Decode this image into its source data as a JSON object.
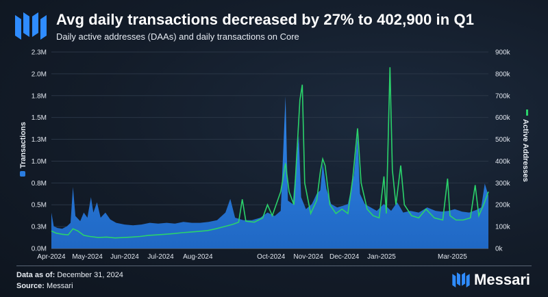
{
  "header": {
    "title": "Avg daily transactions decreased by 27% to 402,900 in Q1",
    "subtitle": "Daily active addresses (DAAs) and daily transactions on Core"
  },
  "footer": {
    "data_as_of_label": "Data as of:",
    "data_as_of_value": "December 31, 2024",
    "source_label": "Source:",
    "source_value": "Messari",
    "brand": "Messari"
  },
  "colors": {
    "transactions": "#2a7de1",
    "active_addresses": "#2bd36b",
    "brand_blue": "#2f8cff"
  },
  "icons": {
    "logo": "messari-logo-icon"
  },
  "chart_data": {
    "type": "area",
    "left_axis": {
      "label": "Transactions",
      "ticks": [
        "0.0M",
        "0.3M",
        "0.5M",
        "0.8M",
        "1.0M",
        "1.3M",
        "1.5M",
        "1.8M",
        "2.0M",
        "2.3M"
      ],
      "tick_values": [
        0,
        255556,
        511111,
        766667,
        1022222,
        1277778,
        1533333,
        1788889,
        2044444,
        2300000
      ],
      "range": [
        0,
        2300000
      ]
    },
    "right_axis": {
      "label": "Active Addresses",
      "ticks": [
        "0k",
        "100k",
        "200k",
        "300k",
        "400k",
        "500k",
        "600k",
        "700k",
        "800k",
        "900k"
      ],
      "tick_values": [
        0,
        100000,
        200000,
        300000,
        400000,
        500000,
        600000,
        700000,
        800000,
        900000
      ],
      "range": [
        0,
        900000
      ]
    },
    "x_axis": {
      "ticks": [
        "Apr-2024",
        "May-2024",
        "Jun-2024",
        "Jul-2024",
        "Aug-2024",
        "Oct-2024",
        "Nov-2024",
        "Dec-2024",
        "Jan-2025",
        "Mar-2025"
      ],
      "tick_dates": [
        "2024-04-01",
        "2024-05-01",
        "2024-06-01",
        "2024-07-01",
        "2024-08-01",
        "2024-10-01",
        "2024-11-01",
        "2024-12-01",
        "2025-01-01",
        "2025-03-01"
      ],
      "range": [
        "2024-04-01",
        "2025-03-31"
      ]
    },
    "series": [
      {
        "name": "Transactions",
        "axis": "left",
        "style": "area",
        "points": [
          [
            "2024-04-01",
            420000
          ],
          [
            "2024-04-03",
            260000
          ],
          [
            "2024-04-06",
            240000
          ],
          [
            "2024-04-10",
            230000
          ],
          [
            "2024-04-14",
            260000
          ],
          [
            "2024-04-17",
            300000
          ],
          [
            "2024-04-19",
            720000
          ],
          [
            "2024-04-21",
            380000
          ],
          [
            "2024-04-25",
            320000
          ],
          [
            "2024-04-28",
            420000
          ],
          [
            "2024-05-01",
            360000
          ],
          [
            "2024-05-04",
            600000
          ],
          [
            "2024-05-06",
            420000
          ],
          [
            "2024-05-09",
            540000
          ],
          [
            "2024-05-12",
            360000
          ],
          [
            "2024-05-16",
            420000
          ],
          [
            "2024-05-20",
            340000
          ],
          [
            "2024-05-25",
            300000
          ],
          [
            "2024-06-01",
            280000
          ],
          [
            "2024-06-08",
            270000
          ],
          [
            "2024-06-15",
            280000
          ],
          [
            "2024-06-22",
            300000
          ],
          [
            "2024-06-29",
            290000
          ],
          [
            "2024-07-06",
            300000
          ],
          [
            "2024-07-13",
            290000
          ],
          [
            "2024-07-20",
            310000
          ],
          [
            "2024-07-27",
            300000
          ],
          [
            "2024-08-03",
            300000
          ],
          [
            "2024-08-10",
            310000
          ],
          [
            "2024-08-17",
            330000
          ],
          [
            "2024-08-24",
            420000
          ],
          [
            "2024-08-28",
            580000
          ],
          [
            "2024-09-01",
            360000
          ],
          [
            "2024-09-08",
            330000
          ],
          [
            "2024-09-15",
            330000
          ],
          [
            "2024-09-22",
            360000
          ],
          [
            "2024-09-28",
            420000
          ],
          [
            "2024-10-04",
            380000
          ],
          [
            "2024-10-09",
            440000
          ],
          [
            "2024-10-13",
            1780000
          ],
          [
            "2024-10-15",
            560000
          ],
          [
            "2024-10-19",
            520000
          ],
          [
            "2024-10-24",
            1320000
          ],
          [
            "2024-10-26",
            600000
          ],
          [
            "2024-10-30",
            460000
          ],
          [
            "2024-11-04",
            520000
          ],
          [
            "2024-11-08",
            640000
          ],
          [
            "2024-11-11",
            680000
          ],
          [
            "2024-11-13",
            1000000
          ],
          [
            "2024-11-16",
            700000
          ],
          [
            "2024-11-20",
            520000
          ],
          [
            "2024-11-25",
            480000
          ],
          [
            "2024-11-30",
            500000
          ],
          [
            "2024-12-04",
            520000
          ],
          [
            "2024-12-09",
            860000
          ],
          [
            "2024-12-12",
            1320000
          ],
          [
            "2024-12-14",
            640000
          ],
          [
            "2024-12-18",
            520000
          ],
          [
            "2024-12-23",
            480000
          ],
          [
            "2024-12-28",
            440000
          ],
          [
            "2025-01-03",
            520000
          ],
          [
            "2025-01-09",
            440000
          ],
          [
            "2025-01-14",
            540000
          ],
          [
            "2025-01-19",
            420000
          ],
          [
            "2025-01-25",
            440000
          ],
          [
            "2025-02-01",
            420000
          ],
          [
            "2025-02-08",
            480000
          ],
          [
            "2025-02-15",
            440000
          ],
          [
            "2025-02-20",
            430000
          ],
          [
            "2025-02-26",
            440000
          ],
          [
            "2025-03-03",
            460000
          ],
          [
            "2025-03-09",
            430000
          ],
          [
            "2025-03-15",
            420000
          ],
          [
            "2025-03-21",
            450000
          ],
          [
            "2025-03-25",
            480000
          ],
          [
            "2025-03-28",
            760000
          ],
          [
            "2025-03-31",
            620000
          ]
        ]
      },
      {
        "name": "Active Addresses",
        "axis": "right",
        "style": "line",
        "points": [
          [
            "2024-04-01",
            80000
          ],
          [
            "2024-04-05",
            70000
          ],
          [
            "2024-04-10",
            65000
          ],
          [
            "2024-04-15",
            62000
          ],
          [
            "2024-04-19",
            90000
          ],
          [
            "2024-04-23",
            80000
          ],
          [
            "2024-04-28",
            60000
          ],
          [
            "2024-05-03",
            55000
          ],
          [
            "2024-05-10",
            50000
          ],
          [
            "2024-05-17",
            52000
          ],
          [
            "2024-05-24",
            48000
          ],
          [
            "2024-05-31",
            50000
          ],
          [
            "2024-06-07",
            52000
          ],
          [
            "2024-06-14",
            55000
          ],
          [
            "2024-06-21",
            60000
          ],
          [
            "2024-06-28",
            62000
          ],
          [
            "2024-07-05",
            65000
          ],
          [
            "2024-07-12",
            68000
          ],
          [
            "2024-07-19",
            72000
          ],
          [
            "2024-07-26",
            75000
          ],
          [
            "2024-08-02",
            78000
          ],
          [
            "2024-08-09",
            82000
          ],
          [
            "2024-08-16",
            90000
          ],
          [
            "2024-08-23",
            100000
          ],
          [
            "2024-08-30",
            110000
          ],
          [
            "2024-09-04",
            120000
          ],
          [
            "2024-09-07",
            225000
          ],
          [
            "2024-09-10",
            125000
          ],
          [
            "2024-09-17",
            120000
          ],
          [
            "2024-09-24",
            140000
          ],
          [
            "2024-09-28",
            200000
          ],
          [
            "2024-10-02",
            150000
          ],
          [
            "2024-10-09",
            260000
          ],
          [
            "2024-10-13",
            390000
          ],
          [
            "2024-10-16",
            260000
          ],
          [
            "2024-10-20",
            200000
          ],
          [
            "2024-10-25",
            680000
          ],
          [
            "2024-10-27",
            750000
          ],
          [
            "2024-10-29",
            300000
          ],
          [
            "2024-11-03",
            160000
          ],
          [
            "2024-11-08",
            220000
          ],
          [
            "2024-11-11",
            350000
          ],
          [
            "2024-11-13",
            410000
          ],
          [
            "2024-11-15",
            380000
          ],
          [
            "2024-11-19",
            200000
          ],
          [
            "2024-11-24",
            160000
          ],
          [
            "2024-11-29",
            180000
          ],
          [
            "2024-12-04",
            160000
          ],
          [
            "2024-12-08",
            320000
          ],
          [
            "2024-12-12",
            550000
          ],
          [
            "2024-12-15",
            300000
          ],
          [
            "2024-12-20",
            180000
          ],
          [
            "2024-12-25",
            150000
          ],
          [
            "2024-12-30",
            140000
          ],
          [
            "2025-01-03",
            330000
          ],
          [
            "2025-01-05",
            160000
          ],
          [
            "2025-01-08",
            830000
          ],
          [
            "2025-01-10",
            360000
          ],
          [
            "2025-01-13",
            200000
          ],
          [
            "2025-01-17",
            380000
          ],
          [
            "2025-01-20",
            200000
          ],
          [
            "2025-01-26",
            150000
          ],
          [
            "2025-02-01",
            140000
          ],
          [
            "2025-02-07",
            180000
          ],
          [
            "2025-02-14",
            140000
          ],
          [
            "2025-02-21",
            130000
          ],
          [
            "2025-02-25",
            320000
          ],
          [
            "2025-02-27",
            150000
          ],
          [
            "2025-03-04",
            130000
          ],
          [
            "2025-03-10",
            130000
          ],
          [
            "2025-03-16",
            140000
          ],
          [
            "2025-03-20",
            290000
          ],
          [
            "2025-03-23",
            150000
          ],
          [
            "2025-03-27",
            200000
          ],
          [
            "2025-03-31",
            260000
          ]
        ]
      }
    ]
  }
}
